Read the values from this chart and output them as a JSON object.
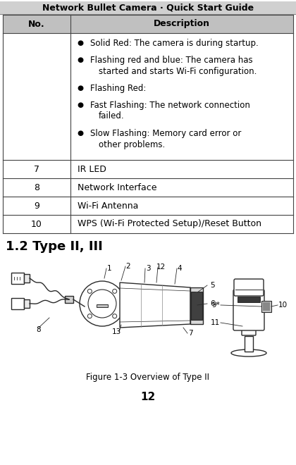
{
  "title": "Network Bullet Camera · Quick Start Guide",
  "page_number": "12",
  "header_bg": "#d0d0d0",
  "table_header_bg": "#c0c0c0",
  "col1_header": "No.",
  "col2_header": "Description",
  "bullets": [
    [
      "Solid Red: The camera is during startup."
    ],
    [
      "Flashing red and blue: The camera has",
      "started and starts Wi-Fi configuration."
    ],
    [
      "Flashing Red:"
    ],
    [
      "Fast Flashing: The network connection",
      "failed."
    ],
    [
      "Slow Flashing: Memory card error or",
      "other problems."
    ]
  ],
  "rows": [
    {
      "no": "7",
      "desc": "IR LED"
    },
    {
      "no": "8",
      "desc": "Network Interface"
    },
    {
      "no": "9",
      "desc": "Wi-Fi Antenna"
    },
    {
      "no": "10",
      "desc": "WPS (Wi-Fi Protected Setup)/Reset Button"
    }
  ],
  "section_title": "1.2 Type II, III",
  "figure_caption": "Figure 1-3 Overview of Type II",
  "bg_color": "#ffffff",
  "border_color": "#444444"
}
